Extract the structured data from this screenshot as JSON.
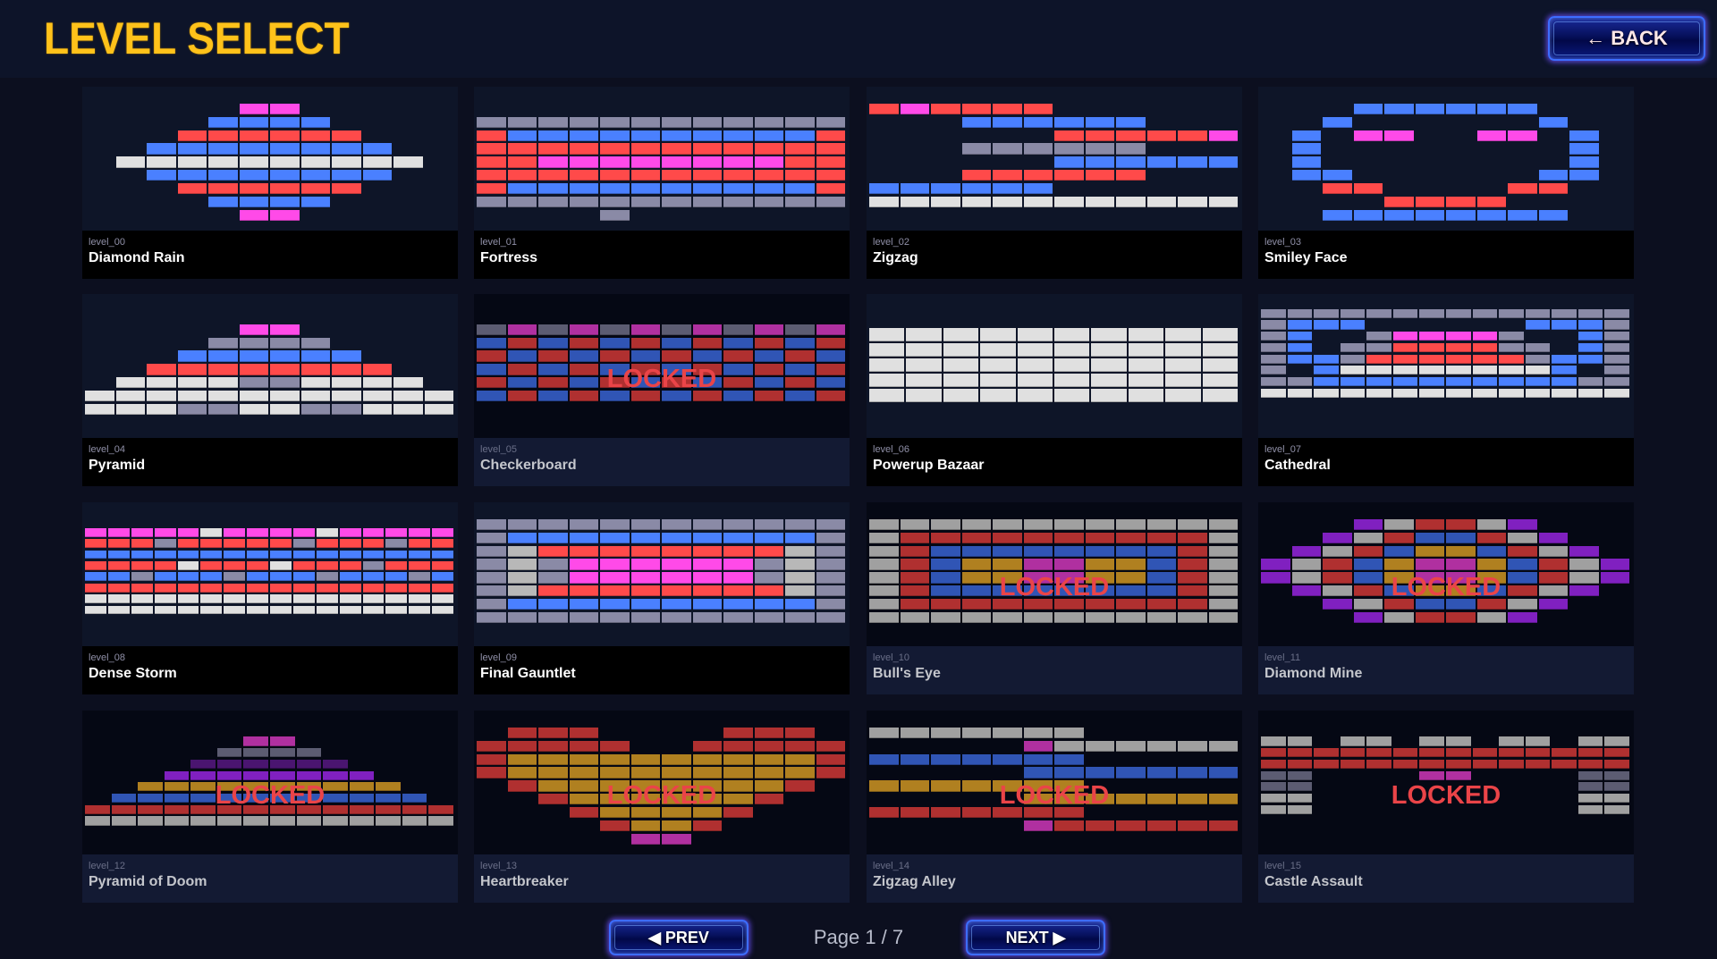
{
  "header": {
    "title": "LEVEL SELECT",
    "back_label": "← BACK"
  },
  "pagination": {
    "prev_label": "◀ PREV",
    "next_label": "NEXT ▶",
    "page_text": "Page 1 / 7",
    "current_page": 1,
    "total_pages": 7
  },
  "locked_label": "LOCKED",
  "brick_colors": {
    "R": "#ff4a4a",
    "B": "#4a80ff",
    "P": "#ff4ae8",
    "W": "#e0e0e0",
    "G": "#8a8aa6",
    "S": "#b8b8b8",
    "r": "#b03030",
    "b": "#3055b5",
    "m": "#b030a0",
    "y": "#b08020",
    "v": "#8020c0",
    "d": "#4a1570",
    "s": "#a0a0a0",
    "g": "#5c5c72"
  },
  "levels": [
    {
      "id": "level_00",
      "name": "Diamond Rain",
      "locked": false,
      "grid": [
        "............",
        ".....PP.....",
        "....BBBB....",
        "...RRRRRR...",
        "..BBBBBBBB..",
        ".WWWWWWWWWW.",
        "..BBBBBBBB..",
        "...RRRRRR...",
        "....BBBB....",
        ".....PP....."
      ]
    },
    {
      "id": "level_01",
      "name": "Fortress",
      "locked": false,
      "grid": [
        "............",
        "............",
        "GGGGGGGGGGGG",
        "RBBBBBBBBBBR",
        "RRRRRRRRRRRR",
        "RRPPPPPPPPRR",
        "RRRRRRRRRRRR",
        "RBBBBBBBBBBR",
        "GGGGGGGGGGGG",
        "....G......."
      ]
    },
    {
      "id": "level_02",
      "name": "Zigzag",
      "locked": false,
      "grid": [
        "............",
        "RPRRRR......",
        "...BBBBBB...",
        "......RRRRRP",
        "...GGGGGG...",
        "......BBBBBB",
        "...RRRRRR...",
        "BBBBBB......",
        "WWWWWWWWWWWW"
      ]
    },
    {
      "id": "level_03",
      "name": "Smiley Face",
      "locked": false,
      "grid": [
        "............",
        "...BBBBBB...",
        "..B......B..",
        ".B.PP..PP.B.",
        ".B........B.",
        ".B........B.",
        ".BB......BB.",
        "..RR....RR..",
        "....RRRR....",
        "..BBBBBBBB.."
      ]
    },
    {
      "id": "level_04",
      "name": "Pyramid",
      "locked": false,
      "grid": [
        "............",
        "............",
        ".....PP.....",
        "....GGGG....",
        "...BBBBBB...",
        "..RRRRRRRR..",
        ".WWWWGGWWWW.",
        "WWWWWWWWWWWW",
        "WWWGGWWGGWWW"
      ]
    },
    {
      "id": "level_05",
      "name": "Checkerboard",
      "locked": true,
      "grid": [
        "............",
        "............",
        "gmgmgmgmgmgm",
        "brbrbrbrbrbr",
        "rbrbrbrbrbrb",
        "brbrbrbrbrbr",
        "rbrbrbrbrbrb",
        "brbrbrbrbrbr"
      ]
    },
    {
      "id": "level_06",
      "name": "Powerup Bazaar",
      "locked": false,
      "grid": [
        "..........",
        "..........",
        "WWWWWWWWWW",
        "WWWWWWWWWW",
        "WWWWWWWWWW",
        "WWWWWWWWWW",
        "WWWWWWWWWW"
      ]
    },
    {
      "id": "level_07",
      "name": "Cathedral",
      "locked": false,
      "grid": [
        "..............",
        "GGGGGGGGGGGGGG",
        "GBBB......BBBG",
        "GB..GPPPPG..BG",
        "GB.GGRRRRGG.BG",
        "GBBGRRRRRRGBBG",
        "G.BWWWWWWWWB.G",
        "GGBBBBBBBBBBGG",
        "WWWWWWWWWWWWWW"
      ]
    },
    {
      "id": "level_08",
      "name": "Dense Storm",
      "locked": false,
      "grid": [
        "................",
        "................",
        "PPPPPWPPPPWPPPPP",
        "RRRGRRRRRGRRRGRR",
        "BBBBBBBBBBBBBBBB",
        "RRRRWRRRWRRRGRRR",
        "BBGBBBGBBBGBBBGB",
        "RRRRRRRRRRRRRRRR",
        "WWWWWWWWWWWWWWWW",
        "WWWWWWWWWWWWWWWW"
      ]
    },
    {
      "id": "level_09",
      "name": "Final Gauntlet",
      "locked": false,
      "grid": [
        "............",
        "GGGGGGGGGGGG",
        "GBBBBBBBBBBG",
        "GSRRRRRRRRSG",
        "GSGPPPPPPGSG",
        "GSGPPPPPPGSG",
        "GSRRRRRRRRSG",
        "GBBBBBBBBBBG",
        "GGGGGGGGGGGG"
      ]
    },
    {
      "id": "level_10",
      "name": "Bull's Eye",
      "locked": true,
      "grid": [
        "............",
        "ssssssssssss",
        "srrrrrrrrrrs",
        "srbbbbbbbbrs",
        "srbyymmyybrs",
        "srbyymmyybrs",
        "srbbbbbbbbrs",
        "srrrrrrrrrrs",
        "ssssssssssss"
      ]
    },
    {
      "id": "level_11",
      "name": "Diamond Mine",
      "locked": true,
      "grid": [
        "............",
        "...vsrrsv...",
        "..vsrbbrsv..",
        ".vsrbyybrsv.",
        "vsrbymmybrsv",
        "vsrbymmybrsv",
        ".vsrbyybrsv.",
        "..vsrbbrsv..",
        "...vsrrsv..."
      ]
    },
    {
      "id": "level_12",
      "name": "Pyramid of Doom",
      "locked": true,
      "grid": [
        "..............",
        "..............",
        "......mm......",
        ".....gggg.....",
        "....dddddd....",
        "...vvvvvvvv...",
        "..yyyyyyyyyy..",
        ".bbbbbbbbbbbb.",
        "rrrrrrrrrrrrrr",
        "ssssssssssssss"
      ]
    },
    {
      "id": "level_13",
      "name": "Heartbreaker",
      "locked": true,
      "grid": [
        "............",
        ".rrr....rrr.",
        "rrrrr..rrrrr",
        "ryyyyyyyyyyr",
        "ryyyyyyyyyyr",
        ".ryyyyyyyyr.",
        "..ryyyyyyr..",
        "...ryyyyr...",
        "....ryyr....",
        ".....mm....."
      ]
    },
    {
      "id": "level_14",
      "name": "Zigzag Alley",
      "locked": true,
      "grid": [
        "............",
        "sssssss.....",
        ".....mssssss",
        "bbbbbbb.....",
        ".....bbbbbbb",
        "yyyyyyy.....",
        ".....yyyyyyy",
        "rrrrrrr.....",
        ".....mrrrrrr"
      ]
    },
    {
      "id": "level_15",
      "name": "Castle Assault",
      "locked": true,
      "grid": [
        "..............",
        "..............",
        "ss.ss.ss.ss.ss",
        "rrrrrrrrrrrrrr",
        "rrrrrrrrrrrrrr",
        "gg....mm....gg",
        "gg..........gg",
        "ss..........ss",
        "ss..........ss"
      ]
    }
  ]
}
